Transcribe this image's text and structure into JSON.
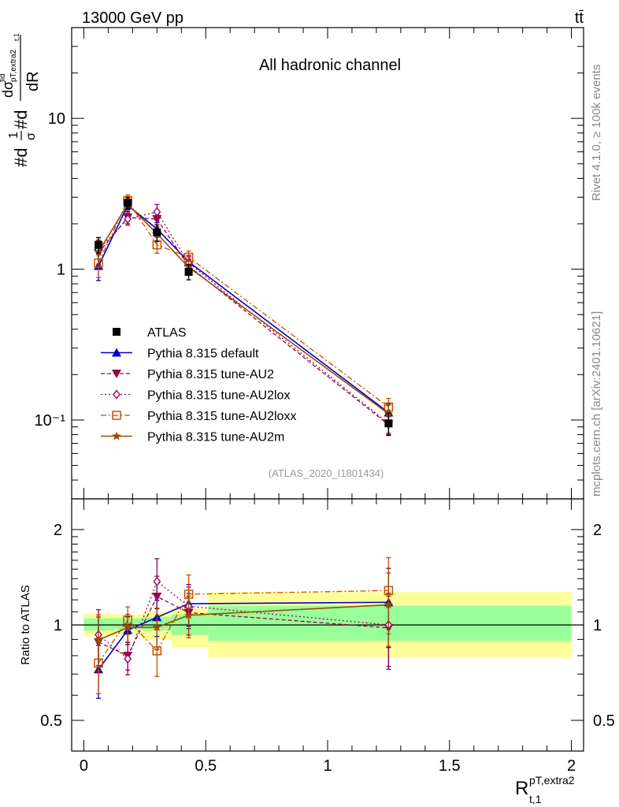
{
  "header": {
    "energy": "13000 GeV pp",
    "process": "tt̄",
    "channel": "All hadronic channel",
    "analysis": "(ATLAS_2020_I1801434)",
    "side_top": "Rivet 4.1.0, ≥ 100k events",
    "side_bottom": "mcplots.cern.ch [arXiv:2401.10621]"
  },
  "axes": {
    "ylabel_main": "#d(1/σ)#d(dσ^fid_pT,extra2_t,1 / dR)",
    "ylabel_ratio": "Ratio to ATLAS",
    "xlabel": "R^pT,extra2_t,1",
    "main_ticks": [
      "10⁻¹",
      "1",
      "10"
    ],
    "ratio_ticks": [
      "0.5",
      "1",
      "2"
    ],
    "x_ticks": [
      "0",
      "0.5",
      "1",
      "1.5",
      "2"
    ]
  },
  "chart_data": {
    "type": "line",
    "title": "All hadronic channel",
    "xlim": [
      -0.05,
      2.05
    ],
    "main_ylim": [
      0.03,
      40
    ],
    "main_yscale": "log",
    "ratio_ylim": [
      0.4,
      2.5
    ],
    "ratio_yscale": "log",
    "x": [
      0.06,
      0.18,
      0.3,
      0.43,
      1.25
    ],
    "data": {
      "name": "ATLAS",
      "values": [
        1.45,
        2.75,
        1.75,
        0.96,
        0.095
      ],
      "err_lo": [
        0.17,
        0.25,
        0.22,
        0.11,
        0.016
      ],
      "err_hi": [
        0.17,
        0.25,
        0.22,
        0.11,
        0.016
      ]
    },
    "ratio_bands": [
      {
        "x0": 0.0,
        "x1": 0.12,
        "inner": [
          0.96,
          1.05
        ],
        "outer": [
          0.92,
          1.09
        ]
      },
      {
        "x0": 0.12,
        "x1": 0.24,
        "inner": [
          0.97,
          1.05
        ],
        "outer": [
          0.93,
          1.08
        ]
      },
      {
        "x0": 0.24,
        "x1": 0.36,
        "inner": [
          0.96,
          1.06
        ],
        "outer": [
          0.9,
          1.1
        ]
      },
      {
        "x0": 0.36,
        "x1": 0.51,
        "inner": [
          0.93,
          1.08
        ],
        "outer": [
          0.85,
          1.13
        ]
      },
      {
        "x0": 0.51,
        "x1": 2.0,
        "inner": [
          0.89,
          1.15
        ],
        "outer": [
          0.79,
          1.27
        ]
      }
    ],
    "series": [
      {
        "name": "Pythia 8.315 default",
        "color": "#0000cc",
        "marker": "triangle-up",
        "dash": "",
        "width": 1.6,
        "values": [
          1.05,
          2.65,
          1.85,
          1.12,
          0.112
        ],
        "rel_err": [
          0.2,
          0.09,
          0.1,
          0.1,
          0.14
        ],
        "ratio_err": [
          0.19,
          0.1,
          0.13,
          0.15,
          0.28
        ]
      },
      {
        "name": "Pythia 8.315 tune-AU2",
        "color": "#99004d",
        "marker": "triangle-down",
        "dash": "5,3",
        "width": 1.3,
        "values": [
          1.28,
          2.2,
          2.15,
          1.05,
          0.093
        ],
        "rel_err": [
          0.2,
          0.09,
          0.11,
          0.1,
          0.14
        ],
        "ratio_err": [
          0.2,
          0.1,
          0.16,
          0.15,
          0.26
        ]
      },
      {
        "name": "Pythia 8.315 tune-AU2lox",
        "color": "#990066",
        "marker": "diamond",
        "dash": "2,3",
        "width": 1.3,
        "values": [
          1.35,
          2.15,
          2.4,
          1.1,
          0.095
        ],
        "rel_err": [
          0.2,
          0.09,
          0.12,
          0.1,
          0.14
        ],
        "ratio_err": [
          0.2,
          0.11,
          0.18,
          0.15,
          0.26
        ]
      },
      {
        "name": "Pythia 8.315 tune-AU2loxx",
        "color": "#cc4d00",
        "marker": "square-open",
        "dash": "7,3,2,3",
        "width": 1.3,
        "values": [
          1.1,
          2.85,
          1.45,
          1.2,
          0.122
        ],
        "rel_err": [
          0.2,
          0.09,
          0.12,
          0.1,
          0.14
        ],
        "ratio_err": [
          0.2,
          0.1,
          0.17,
          0.15,
          0.27
        ]
      },
      {
        "name": "Pythia 8.315 tune-AU2m",
        "color": "#994d00",
        "marker": "star",
        "dash": "",
        "width": 1.6,
        "values": [
          1.3,
          2.7,
          1.72,
          1.03,
          0.11
        ],
        "rel_err": [
          0.2,
          0.09,
          0.11,
          0.1,
          0.14
        ],
        "ratio_err": [
          0.2,
          0.1,
          0.15,
          0.15,
          0.26
        ]
      }
    ]
  }
}
